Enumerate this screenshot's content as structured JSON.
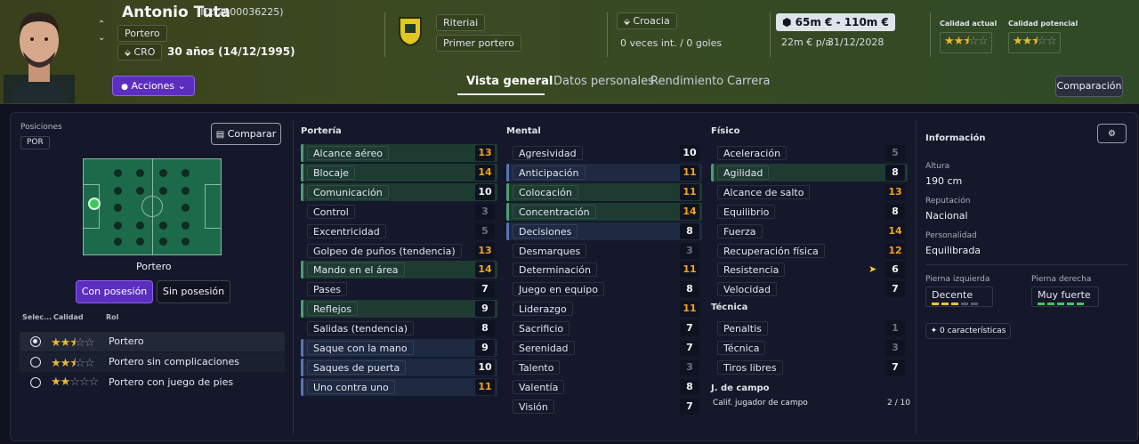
{
  "player": {
    "name": "Antonio Tuta",
    "id": "(ID: 2000036225)",
    "position": "Portero",
    "nation_code": "CRO",
    "age": "30 años (14/12/1995)"
  },
  "actions_label": "Acciones",
  "club": {
    "name": "Riteriai",
    "squad_role": "Primer portero"
  },
  "nation": {
    "name": "Croacia",
    "caps": "0 veces int. / 0 goles"
  },
  "value": {
    "range": "65m € - 110m €",
    "wage": "22m € p/a",
    "contract": "31/12/2028"
  },
  "quality": {
    "current_label": "Calidad actual",
    "potential_label": "Calidad potencial",
    "current_stars": "★★★",
    "potential_stars": "★★★"
  },
  "tabs": [
    {
      "label": "Vista general",
      "active": true
    },
    {
      "label": "Datos personales"
    },
    {
      "label": "Rendimiento"
    },
    {
      "label": "Carrera"
    }
  ],
  "compare_top": "Comparación",
  "left": {
    "positions_label": "Posiciones",
    "position_code": "POR",
    "compare_btn": "Comparar",
    "pitch_role": "Portero",
    "possession_on": "Con posesión",
    "possession_off": "Sin posesión",
    "role_headers": {
      "select": "Selec...",
      "quality": "Calidad",
      "role": "Rol"
    },
    "roles": [
      {
        "name": "Portero",
        "stars": 2.5,
        "selected": true
      },
      {
        "name": "Portero sin complicaciones",
        "stars": 2.5,
        "selected": false
      },
      {
        "name": "Portero con juego de pies",
        "stars": 2,
        "selected": false
      }
    ]
  },
  "columns": {
    "porteria": {
      "title": "Portería",
      "attrs": [
        {
          "n": "Alcance aéreo",
          "v": "13",
          "bg": "green",
          "c": "orange"
        },
        {
          "n": "Blocaje",
          "v": "14",
          "bg": "green",
          "c": "orange"
        },
        {
          "n": "Comunicación",
          "v": "10",
          "bg": "green",
          "c": "white"
        },
        {
          "n": "Control",
          "v": "3",
          "bg": "none",
          "c": "gray"
        },
        {
          "n": "Excentricidad",
          "v": "5",
          "bg": "none",
          "c": "gray"
        },
        {
          "n": "Golpeo de puños (tendencia)",
          "v": "13",
          "bg": "none",
          "c": "orange"
        },
        {
          "n": "Mando en el área",
          "v": "14",
          "bg": "green",
          "c": "orange"
        },
        {
          "n": "Pases",
          "v": "7",
          "bg": "none",
          "c": "white"
        },
        {
          "n": "Reflejos",
          "v": "9",
          "bg": "green",
          "c": "white"
        },
        {
          "n": "Salidas (tendencia)",
          "v": "8",
          "bg": "none",
          "c": "white"
        },
        {
          "n": "Saque con la mano",
          "v": "9",
          "bg": "blue",
          "c": "white"
        },
        {
          "n": "Saques de puerta",
          "v": "10",
          "bg": "blue",
          "c": "white"
        },
        {
          "n": "Uno contra uno",
          "v": "11",
          "bg": "blue",
          "c": "orange"
        }
      ]
    },
    "mental": {
      "title": "Mental",
      "attrs": [
        {
          "n": "Agresividad",
          "v": "10",
          "bg": "none",
          "c": "white"
        },
        {
          "n": "Anticipación",
          "v": "11",
          "bg": "blue",
          "c": "orange"
        },
        {
          "n": "Colocación",
          "v": "11",
          "bg": "green",
          "c": "orange"
        },
        {
          "n": "Concentración",
          "v": "14",
          "bg": "green",
          "c": "orange"
        },
        {
          "n": "Decisiones",
          "v": "8",
          "bg": "blue",
          "c": "white"
        },
        {
          "n": "Desmarques",
          "v": "3",
          "bg": "none",
          "c": "gray"
        },
        {
          "n": "Determinación",
          "v": "11",
          "bg": "none",
          "c": "orange"
        },
        {
          "n": "Juego en equipo",
          "v": "8",
          "bg": "none",
          "c": "white"
        },
        {
          "n": "Liderazgo",
          "v": "11",
          "bg": "none",
          "c": "orange"
        },
        {
          "n": "Sacrificio",
          "v": "7",
          "bg": "none",
          "c": "white"
        },
        {
          "n": "Serenidad",
          "v": "7",
          "bg": "none",
          "c": "white"
        },
        {
          "n": "Talento",
          "v": "3",
          "bg": "none",
          "c": "gray"
        },
        {
          "n": "Valentía",
          "v": "8",
          "bg": "none",
          "c": "white"
        },
        {
          "n": "Visión",
          "v": "7",
          "bg": "none",
          "c": "white"
        }
      ]
    },
    "fisico": {
      "title": "Físico",
      "attrs": [
        {
          "n": "Aceleración",
          "v": "5",
          "bg": "none",
          "c": "gray"
        },
        {
          "n": "Agilidad",
          "v": "8",
          "bg": "green",
          "c": "white"
        },
        {
          "n": "Alcance de salto",
          "v": "13",
          "bg": "none",
          "c": "orange"
        },
        {
          "n": "Equilibrio",
          "v": "8",
          "bg": "none",
          "c": "white"
        },
        {
          "n": "Fuerza",
          "v": "14",
          "bg": "none",
          "c": "orange"
        },
        {
          "n": "Recuperación física",
          "v": "12",
          "bg": "none",
          "c": "orange"
        },
        {
          "n": "Resistencia",
          "v": "6",
          "bg": "none",
          "c": "white"
        },
        {
          "n": "Velocidad",
          "v": "7",
          "bg": "none",
          "c": "white"
        }
      ]
    },
    "tecnica": {
      "title": "Técnica",
      "attrs": [
        {
          "n": "Penaltis",
          "v": "1",
          "bg": "none",
          "c": "gray"
        },
        {
          "n": "Técnica",
          "v": "3",
          "bg": "none",
          "c": "gray"
        },
        {
          "n": "Tiros libres",
          "v": "7",
          "bg": "none",
          "c": "white"
        }
      ]
    },
    "jcampo": {
      "title": "J. de campo",
      "label": "Calif. jugador de campo",
      "value": "2 / 10"
    }
  },
  "info": {
    "title": "Información",
    "height_label": "Altura",
    "height": "190 cm",
    "rep_label": "Reputación",
    "rep": "Nacional",
    "pers_label": "Personalidad",
    "pers": "Equilibrada",
    "left_foot_label": "Pierna izquierda",
    "left_foot": "Decente",
    "right_foot_label": "Pierna derecha",
    "right_foot": "Muy fuerte",
    "traits": "0 características"
  }
}
